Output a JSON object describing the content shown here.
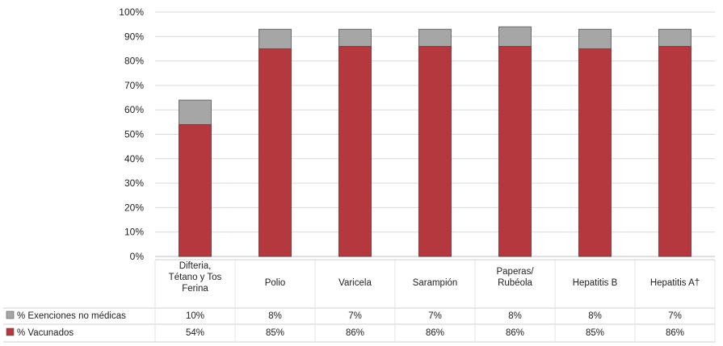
{
  "colors": {
    "vacunados": "#b5383f",
    "exenciones": "#a6a6a6",
    "grid": "#d9d9d9"
  },
  "chart_data": {
    "type": "bar",
    "stacked": true,
    "categories": [
      [
        "Difteria,",
        "Tétano y Tos",
        "Ferina"
      ],
      [
        "Polio"
      ],
      [
        "Varicela"
      ],
      [
        "Sarampión"
      ],
      [
        "Paperas/",
        "Rubéola"
      ],
      [
        "Hepatitis B"
      ],
      [
        "Hepatitis A†"
      ]
    ],
    "series": [
      {
        "name": "% Vacunados",
        "values": [
          54,
          85,
          86,
          86,
          86,
          85,
          86
        ],
        "labels": [
          "54%",
          "85%",
          "86%",
          "86%",
          "86%",
          "85%",
          "86%"
        ]
      },
      {
        "name": "% Exenciones no médicas",
        "values": [
          10,
          8,
          7,
          7,
          8,
          8,
          7
        ],
        "labels": [
          "10%",
          "8%",
          "7%",
          "7%",
          "8%",
          "8%",
          "7%"
        ]
      }
    ],
    "ylim": [
      0,
      100
    ],
    "yticks": [
      "0%",
      "10%",
      "20%",
      "30%",
      "40%",
      "50%",
      "60%",
      "70%",
      "80%",
      "90%",
      "100%"
    ],
    "grid": true,
    "legend": "data-table"
  }
}
